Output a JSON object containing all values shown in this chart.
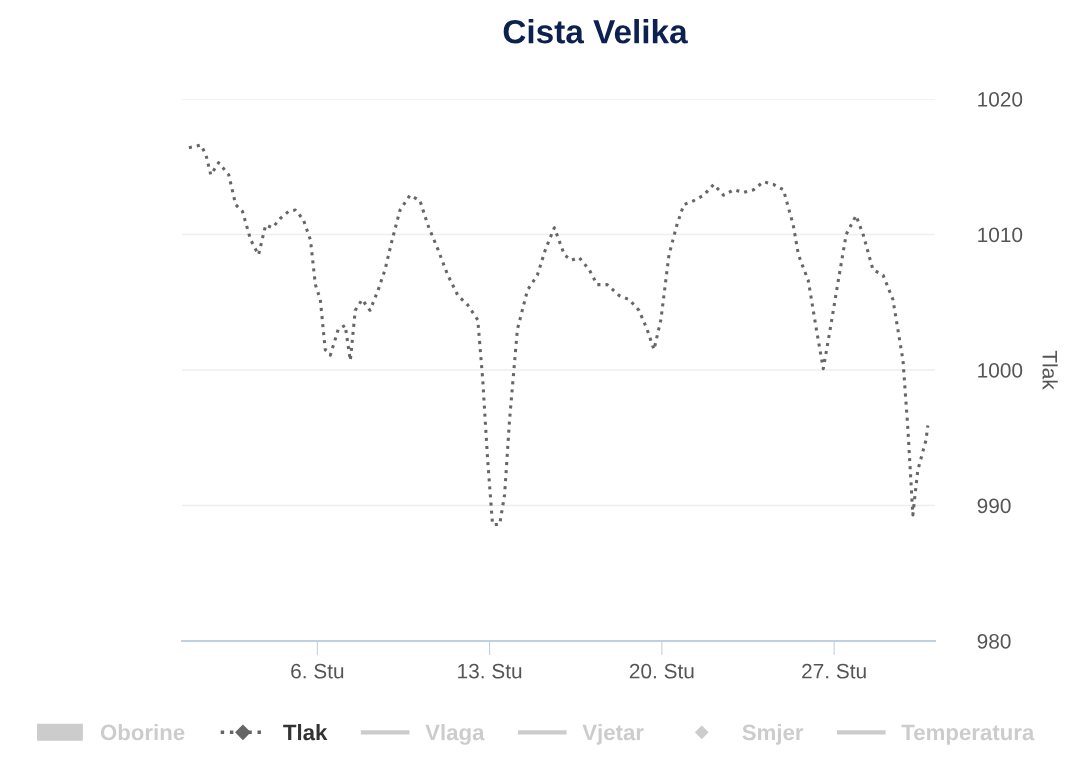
{
  "chart_data": {
    "type": "line",
    "title": "Cista Velika",
    "ylabel": "Tlak",
    "xlim": [
      0.5,
      31.1
    ],
    "xticks": [
      {
        "value": 6,
        "label": "6. Stu"
      },
      {
        "value": 13,
        "label": "13. Stu"
      },
      {
        "value": 20,
        "label": "20. Stu"
      },
      {
        "value": 27,
        "label": "27. Stu"
      }
    ],
    "ylim": [
      980,
      1020
    ],
    "yticks": [
      980,
      990,
      1000,
      1010,
      1020
    ],
    "grid": "y",
    "legend": "bottom",
    "line_style": "dotted",
    "series": [
      {
        "name": "Oborine",
        "type": "bar",
        "color": "#cccccc"
      },
      {
        "name": "Tlak",
        "color": "#666666",
        "x": [
          0.78,
          1.27,
          1.47,
          1.67,
          1.99,
          2.4,
          2.68,
          2.96,
          3.29,
          3.61,
          3.9,
          4.18,
          4.5,
          4.83,
          5.11,
          5.43,
          5.72,
          5.92,
          6.12,
          6.32,
          6.53,
          6.85,
          7.13,
          7.34,
          7.54,
          7.82,
          8.14,
          8.47,
          8.75,
          9.04,
          9.36,
          9.76,
          10.17,
          10.49,
          10.9,
          11.3,
          11.71,
          12.11,
          12.52,
          12.72,
          12.92,
          13.12,
          13.41,
          13.61,
          13.81,
          14.13,
          14.54,
          14.94,
          15.27,
          15.63,
          16.04,
          16.32,
          16.64,
          17.05,
          17.37,
          17.78,
          18.26,
          18.67,
          19.07,
          19.4,
          19.68,
          19.96,
          20.29,
          20.61,
          20.89,
          21.3,
          21.7,
          22.11,
          22.51,
          22.92,
          23.32,
          23.73,
          24.13,
          24.53,
          24.94,
          25.34,
          25.55,
          25.95,
          26.28,
          26.56,
          26.84,
          27.17,
          27.49,
          27.89,
          28.18,
          28.58,
          28.99,
          29.39,
          29.8,
          30.0,
          30.2,
          30.4,
          30.73,
          30.81
        ],
        "values": [
          1016.4,
          1016.6,
          1015.9,
          1014.4,
          1015.3,
          1014.4,
          1012.2,
          1011.7,
          1009.6,
          1008.5,
          1010.7,
          1010.5,
          1011.2,
          1011.7,
          1011.8,
          1011.1,
          1009.6,
          1006.3,
          1005.2,
          1001.5,
          1001.1,
          1003.0,
          1003.3,
          1000.7,
          1004.4,
          1005.2,
          1004.4,
          1005.9,
          1007.4,
          1009.6,
          1011.8,
          1012.9,
          1012.5,
          1010.7,
          1008.9,
          1007.0,
          1005.5,
          1004.8,
          1003.7,
          999.3,
          993.4,
          988.6,
          988.6,
          990.8,
          996.3,
          1003.0,
          1005.9,
          1007.0,
          1008.9,
          1010.5,
          1008.5,
          1008.1,
          1008.3,
          1007.4,
          1006.3,
          1006.3,
          1005.5,
          1005.2,
          1004.4,
          1003.0,
          1001.5,
          1003.7,
          1008.5,
          1010.7,
          1012.2,
          1012.5,
          1012.9,
          1013.7,
          1012.9,
          1013.3,
          1013.1,
          1013.3,
          1013.9,
          1013.7,
          1013.3,
          1010.7,
          1008.5,
          1006.6,
          1003.0,
          1000.1,
          1003.0,
          1006.6,
          1010.0,
          1011.4,
          1010.0,
          1007.4,
          1007.0,
          1005.2,
          1000.7,
          995.6,
          989.3,
          992.6,
          994.8,
          995.9
        ]
      },
      {
        "name": "Vlaga",
        "type": "line",
        "color": "#cccccc"
      },
      {
        "name": "Vjetar",
        "type": "line",
        "color": "#cccccc"
      },
      {
        "name": "Smjer",
        "type": "scatter",
        "color": "#cccccc"
      },
      {
        "name": "Temperatura",
        "type": "line",
        "color": "#cccccc"
      }
    ]
  }
}
